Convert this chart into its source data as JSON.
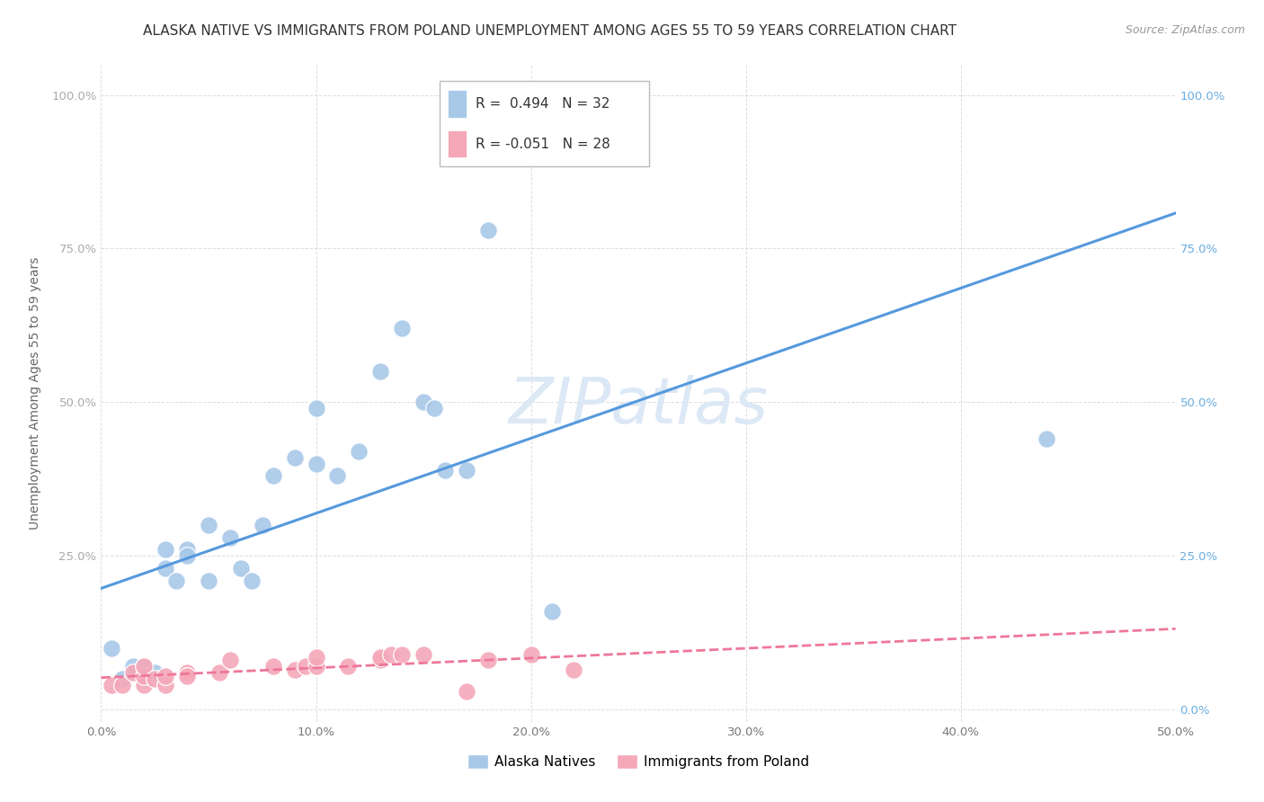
{
  "title": "ALASKA NATIVE VS IMMIGRANTS FROM POLAND UNEMPLOYMENT AMONG AGES 55 TO 59 YEARS CORRELATION CHART",
  "source": "Source: ZipAtlas.com",
  "ylabel": "Unemployment Among Ages 55 to 59 years",
  "xlabel": "",
  "xlim": [
    0.0,
    0.5
  ],
  "ylim": [
    -0.02,
    1.05
  ],
  "xticks": [
    0.0,
    0.1,
    0.2,
    0.3,
    0.4,
    0.5
  ],
  "yticks": [
    0.0,
    0.25,
    0.5,
    0.75,
    1.0
  ],
  "ytick_labels_left": [
    "",
    "25.0%",
    "50.0%",
    "75.0%",
    "100.0%"
  ],
  "ytick_labels_right": [
    "0.0%",
    "25.0%",
    "50.0%",
    "75.0%",
    "100.0%"
  ],
  "xtick_labels": [
    "0.0%",
    "10.0%",
    "20.0%",
    "30.0%",
    "40.0%",
    "50.0%"
  ],
  "blue_color": "#a8c8e8",
  "pink_color": "#f4a8b8",
  "blue_line_color": "#5599dd",
  "pink_line_color": "#ee7799",
  "R_blue": 0.494,
  "N_blue": 32,
  "R_pink": -0.051,
  "N_pink": 28,
  "blue_scatter_x": [
    0.005,
    0.01,
    0.015,
    0.02,
    0.02,
    0.025,
    0.03,
    0.03,
    0.035,
    0.04,
    0.04,
    0.05,
    0.05,
    0.06,
    0.065,
    0.07,
    0.075,
    0.08,
    0.09,
    0.1,
    0.1,
    0.11,
    0.12,
    0.13,
    0.14,
    0.15,
    0.155,
    0.16,
    0.17,
    0.18,
    0.21,
    0.44
  ],
  "blue_scatter_y": [
    0.1,
    0.05,
    0.07,
    0.05,
    0.07,
    0.06,
    0.23,
    0.26,
    0.21,
    0.26,
    0.25,
    0.21,
    0.3,
    0.28,
    0.23,
    0.21,
    0.3,
    0.38,
    0.41,
    0.4,
    0.49,
    0.38,
    0.42,
    0.55,
    0.62,
    0.5,
    0.49,
    0.39,
    0.39,
    0.78,
    0.16,
    0.44
  ],
  "pink_scatter_x": [
    0.005,
    0.01,
    0.015,
    0.02,
    0.02,
    0.02,
    0.025,
    0.03,
    0.03,
    0.04,
    0.04,
    0.055,
    0.06,
    0.08,
    0.09,
    0.095,
    0.1,
    0.1,
    0.115,
    0.13,
    0.13,
    0.135,
    0.14,
    0.15,
    0.17,
    0.18,
    0.2,
    0.22
  ],
  "pink_scatter_y": [
    0.04,
    0.04,
    0.06,
    0.04,
    0.055,
    0.07,
    0.05,
    0.04,
    0.055,
    0.06,
    0.055,
    0.06,
    0.08,
    0.07,
    0.065,
    0.07,
    0.07,
    0.085,
    0.07,
    0.08,
    0.085,
    0.09,
    0.09,
    0.09,
    0.03,
    0.08,
    0.09,
    0.065
  ],
  "background_color": "#ffffff",
  "grid_color": "#dddddd",
  "title_fontsize": 11,
  "source_fontsize": 9,
  "axis_label_fontsize": 10,
  "tick_fontsize": 9.5,
  "legend_fontsize": 11,
  "watermark": "ZIPatlas",
  "watermark_color": "#dce8f5",
  "watermark_fontsize": 52
}
